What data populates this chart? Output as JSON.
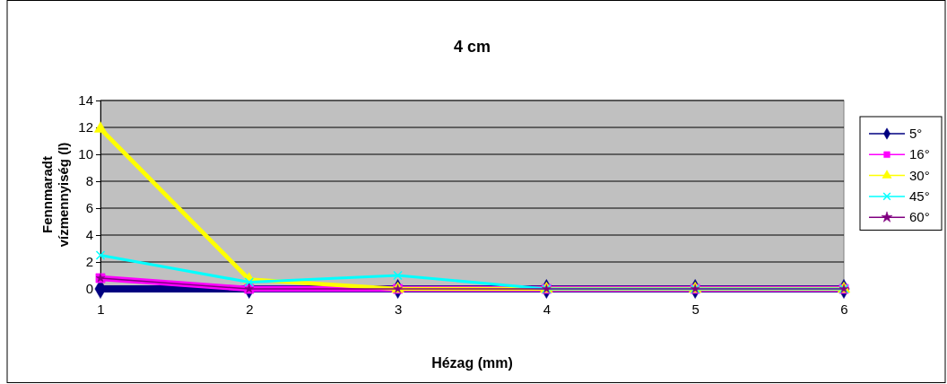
{
  "chart_data": {
    "type": "line",
    "title": "4 cm",
    "xlabel": "Hézag (mm)",
    "ylabel": "Fennmaradt vízmennyiség (l)",
    "x": [
      1,
      2,
      3,
      4,
      5,
      6
    ],
    "xlim": [
      1,
      6
    ],
    "xticks": [
      1,
      2,
      3,
      4,
      5,
      6
    ],
    "ylim": [
      0,
      14
    ],
    "yticks": [
      0,
      2,
      4,
      6,
      8,
      10,
      12,
      14
    ],
    "grid": "y",
    "legend": "right",
    "series": [
      {
        "name": "5°",
        "color": "#000080",
        "marker": "diamond",
        "values": [
          0,
          0,
          0,
          0,
          0,
          0
        ]
      },
      {
        "name": "16°",
        "color": "#ff00ff",
        "marker": "square",
        "values": [
          0.8,
          0,
          0,
          0,
          0,
          0
        ]
      },
      {
        "name": "30°",
        "color": "#ffff00",
        "marker": "triangle",
        "values": [
          11.9,
          0.7,
          0,
          0,
          0,
          0
        ]
      },
      {
        "name": "45°",
        "color": "#00ffff",
        "marker": "cross",
        "values": [
          2.5,
          0.5,
          1,
          0,
          0,
          0
        ]
      },
      {
        "name": "60°",
        "color": "#800080",
        "marker": "star",
        "values": [
          0.8,
          0,
          0,
          0,
          0,
          0
        ]
      }
    ]
  }
}
